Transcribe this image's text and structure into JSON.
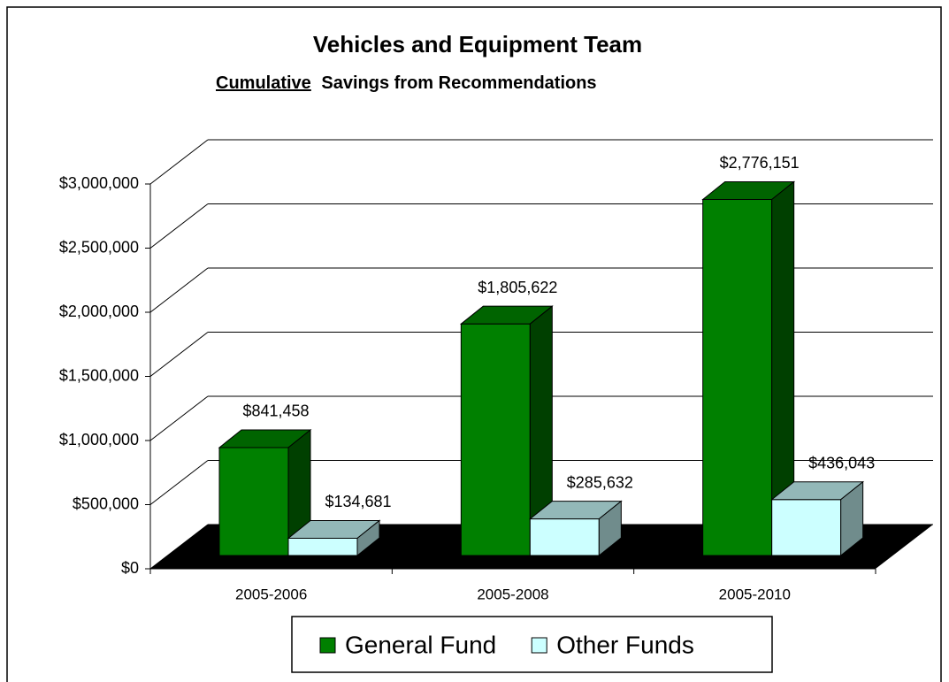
{
  "chart_data": {
    "type": "bar3d",
    "title": "Vehicles and Equipment Team",
    "subtitle": [
      "Cumulative",
      "Savings from Recommendations"
    ],
    "categories": [
      "2005-2006",
      "2005-2008",
      "2005-2010"
    ],
    "series": [
      {
        "name": "General Fund",
        "color": "#008000",
        "values": [
          841458,
          1805622,
          2776151
        ],
        "value_labels": [
          "$841,458",
          "$1,805,622",
          "$2,776,151"
        ]
      },
      {
        "name": "Other Funds",
        "color": "#ccffff",
        "values": [
          134681,
          285632,
          436043
        ],
        "value_labels": [
          "$134,681",
          "$285,632",
          "$436,043"
        ]
      }
    ],
    "ylim": [
      0,
      3000000
    ],
    "yticks": [
      {
        "value": 0,
        "label": "$0"
      },
      {
        "value": 500000,
        "label": "$500,000"
      },
      {
        "value": 1000000,
        "label": "$1,000,000"
      },
      {
        "value": 1500000,
        "label": "$1,500,000"
      },
      {
        "value": 2000000,
        "label": "$2,000,000"
      },
      {
        "value": 2500000,
        "label": "$2,500,000"
      },
      {
        "value": 3000000,
        "label": "$3,000,000"
      }
    ],
    "grid": true,
    "legend": "bottom"
  }
}
